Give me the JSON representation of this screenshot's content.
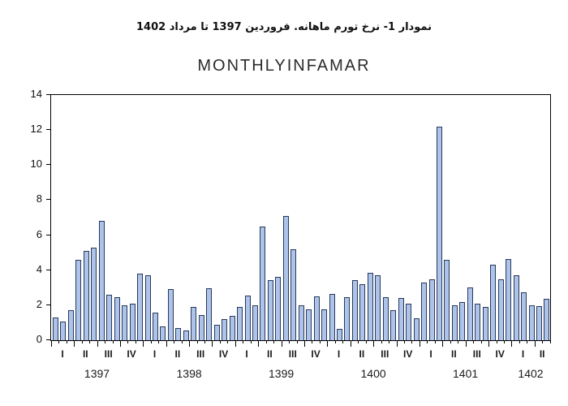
{
  "header": {
    "title_fa": "نمودار 1- نرخ تورم ماهانه. فروردین 1397 تا مرداد 1402",
    "subtitle": "MONTHLYINFAMAR"
  },
  "chart_data": {
    "type": "bar",
    "title": "نمودار 1- نرخ تورم ماهانه. فروردین 1397 تا مرداد 1402",
    "subtitle": "MONTHLYINFAMAR",
    "xlabel": "",
    "ylabel": "",
    "ylim": [
      0,
      14
    ],
    "y_ticks": [
      0,
      2,
      4,
      6,
      8,
      10,
      12,
      14
    ],
    "grid": false,
    "legend": "none",
    "quarter_roman": [
      "I",
      "II",
      "III",
      "IV"
    ],
    "bar_fill": "#AEC3E8",
    "bar_border": "#27395E",
    "series": [
      {
        "year": "1397",
        "values": [
          1.3,
          1.05,
          1.7,
          4.6,
          5.1,
          5.3,
          6.8,
          2.6,
          2.45,
          2.0,
          2.1,
          3.8
        ]
      },
      {
        "year": "1398",
        "values": [
          3.7,
          1.6,
          0.8,
          2.9,
          0.7,
          0.55,
          1.9,
          1.45,
          2.95,
          0.9,
          1.2,
          1.4
        ]
      },
      {
        "year": "1399",
        "values": [
          1.9,
          2.55,
          2.0,
          6.5,
          3.45,
          3.6,
          7.1,
          5.2,
          2.0,
          1.75,
          2.5,
          1.75
        ]
      },
      {
        "year": "1400",
        "values": [
          2.65,
          0.65,
          2.45,
          3.45,
          3.2,
          3.85,
          3.7,
          2.45,
          1.7,
          2.4,
          2.1,
          1.25
        ]
      },
      {
        "year": "1401",
        "values": [
          3.3,
          3.5,
          12.2,
          4.6,
          2.0,
          2.2,
          3.0,
          2.1,
          1.9,
          4.3,
          3.5,
          4.65
        ]
      },
      {
        "year": "1402",
        "values": [
          3.7,
          2.75,
          2.0,
          1.95,
          2.35
        ]
      }
    ]
  }
}
